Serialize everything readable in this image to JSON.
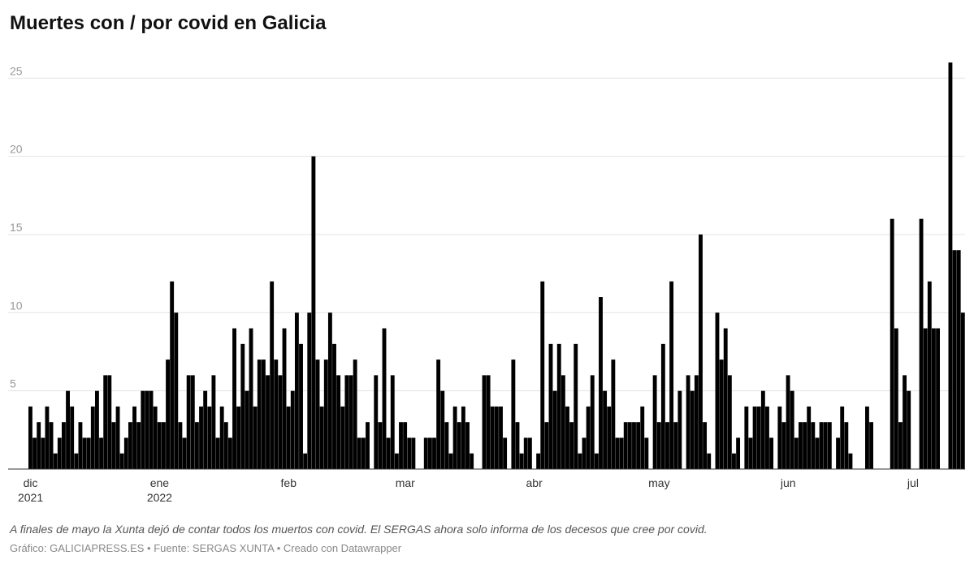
{
  "chart_data": {
    "type": "bar",
    "title": "Muertes con / por covid en Galicia",
    "note": "A finales de mayo la Xunta dejó de contar todos los muertos con covid. El SERGAS ahora solo informa de los decesos que cree por covid.",
    "credit": "Gráfico: GALICIAPRESS.ES • Fuente: SERGAS XUNTA • Creado con Datawrapper",
    "color": "#000000",
    "ylim": [
      0,
      26
    ],
    "yticks": [
      5,
      10,
      15,
      20,
      25
    ],
    "grid": true,
    "categories": [
      "dic 2021",
      null,
      null,
      null,
      null,
      null,
      null,
      null,
      null,
      null,
      null,
      null,
      null,
      null,
      null,
      null,
      null,
      null,
      null,
      null,
      null,
      null,
      null,
      null,
      null,
      null,
      null,
      null,
      null,
      null,
      null,
      "ene 2022",
      null,
      null,
      null,
      null,
      null,
      null,
      null,
      null,
      null,
      null,
      null,
      null,
      null,
      null,
      null,
      null,
      null,
      null,
      null,
      null,
      null,
      null,
      null,
      null,
      null,
      null,
      null,
      null,
      null,
      null,
      "feb",
      null,
      null,
      null,
      null,
      null,
      null,
      null,
      null,
      null,
      null,
      null,
      null,
      null,
      null,
      null,
      null,
      null,
      null,
      null,
      null,
      null,
      null,
      null,
      null,
      null,
      null,
      null,
      "mar",
      null,
      null,
      null,
      null,
      null,
      null,
      null,
      null,
      null,
      null,
      null,
      null,
      null,
      null,
      null,
      null,
      null,
      null,
      null,
      null,
      null,
      null,
      null,
      null,
      null,
      null,
      null,
      null,
      null,
      null,
      "abr",
      null,
      null,
      null,
      null,
      null,
      null,
      null,
      null,
      null,
      null,
      null,
      null,
      null,
      null,
      null,
      null,
      null,
      null,
      null,
      null,
      null,
      null,
      null,
      null,
      null,
      null,
      null,
      null,
      null,
      "may",
      null,
      null,
      null,
      null,
      null,
      null,
      null,
      null,
      null,
      null,
      null,
      null,
      null,
      null,
      null,
      null,
      null,
      null,
      null,
      null,
      null,
      null,
      null,
      null,
      null,
      null,
      null,
      null,
      null,
      null,
      "jun",
      null,
      null,
      null,
      null,
      null,
      null,
      null,
      null,
      null,
      null,
      null,
      null,
      null,
      null,
      null,
      null,
      null,
      null,
      null,
      null,
      null,
      null,
      null,
      null,
      null,
      null,
      null,
      null,
      null,
      "jul",
      null,
      null,
      null,
      null,
      null,
      null,
      null,
      null,
      null,
      null,
      null,
      null
    ],
    "values": [
      4,
      2,
      3,
      2,
      4,
      3,
      1,
      2,
      3,
      5,
      4,
      1,
      3,
      2,
      2,
      4,
      5,
      2,
      6,
      6,
      3,
      4,
      1,
      2,
      3,
      4,
      3,
      5,
      5,
      5,
      4,
      3,
      3,
      7,
      12,
      10,
      3,
      2,
      6,
      6,
      3,
      4,
      5,
      4,
      6,
      2,
      4,
      3,
      2,
      9,
      4,
      8,
      5,
      9,
      4,
      7,
      7,
      6,
      12,
      7,
      6,
      9,
      4,
      5,
      10,
      8,
      1,
      10,
      20,
      7,
      4,
      7,
      10,
      8,
      6,
      4,
      6,
      6,
      7,
      2,
      2,
      3,
      0,
      6,
      3,
      9,
      2,
      6,
      1,
      3,
      3,
      2,
      2,
      0,
      0,
      2,
      2,
      2,
      7,
      5,
      3,
      1,
      4,
      3,
      4,
      3,
      1,
      0,
      0,
      6,
      6,
      4,
      4,
      4,
      2,
      0,
      7,
      3,
      1,
      2,
      2,
      0,
      1,
      12,
      3,
      8,
      5,
      8,
      6,
      4,
      3,
      8,
      1,
      2,
      4,
      6,
      1,
      11,
      5,
      4,
      7,
      2,
      2,
      3,
      3,
      3,
      3,
      4,
      2,
      0,
      6,
      3,
      8,
      3,
      12,
      3,
      5,
      0,
      6,
      5,
      6,
      15,
      3,
      1,
      0,
      10,
      7,
      9,
      6,
      1,
      2,
      0,
      4,
      2,
      4,
      4,
      5,
      4,
      2,
      0,
      4,
      3,
      6,
      5,
      2,
      3,
      3,
      4,
      3,
      2,
      3,
      3,
      3,
      0,
      2,
      4,
      3,
      1,
      0,
      0,
      0,
      4,
      3,
      0,
      0,
      0,
      0,
      16,
      9,
      3,
      6,
      5,
      0,
      0,
      16,
      9,
      12,
      9,
      9,
      0,
      0,
      26,
      14,
      14,
      10
    ]
  }
}
